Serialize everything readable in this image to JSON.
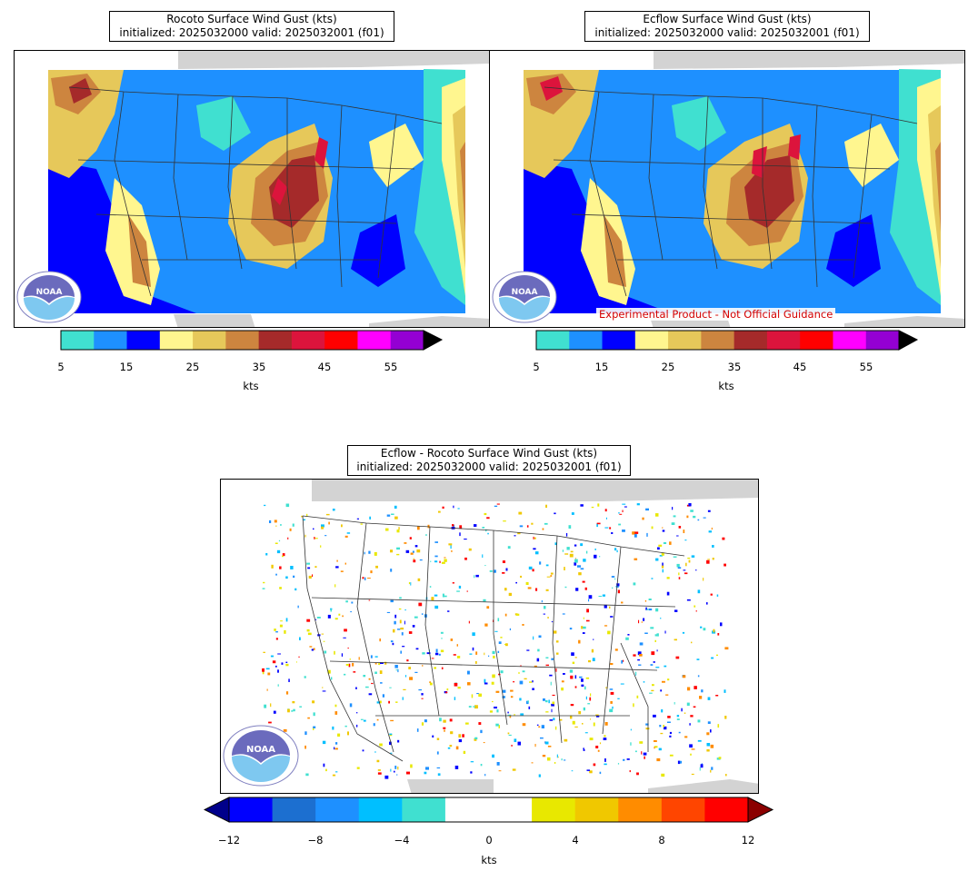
{
  "panels": {
    "rocoto": {
      "title_line1": "Rocoto Surface Wind Gust (kts)",
      "title_line2": "initialized: 2025032000 valid: 2025032001 (f01)"
    },
    "ecflow": {
      "title_line1": "Ecflow Surface Wind Gust (kts)",
      "title_line2": "initialized: 2025032000 valid: 2025032001 (f01)",
      "disclaimer": "Experimental Product - Not Official Guidance"
    },
    "diff": {
      "title_line1": "Ecflow - Rocoto Surface Wind Gust (kts)",
      "title_line2": "initialized: 2025032000 valid: 2025032001 (f01)"
    }
  },
  "logo": {
    "text": "NOAA",
    "icon": "noaa-logo"
  },
  "colorbar_gust": {
    "unit": "kts",
    "ticks": [
      "5",
      "15",
      "25",
      "35",
      "45",
      "55"
    ],
    "colors": [
      "#40e0d0",
      "#1e90ff",
      "#0000ff",
      "#fff68f",
      "#e6c85a",
      "#cd853f",
      "#a52a2a",
      "#dc143c",
      "#ff0000",
      "#ff00ff",
      "#9400d3"
    ],
    "extend": "max",
    "extend_color": "#000000"
  },
  "colorbar_diff": {
    "unit": "kts",
    "ticks": [
      "−12",
      "−8",
      "−4",
      "0",
      "4",
      "8",
      "12"
    ],
    "colors": [
      "#0000ff",
      "#1c6fd0",
      "#1e90ff",
      "#00bfff",
      "#40e0d0",
      "#ffffff",
      "#ffffff",
      "#e8e800",
      "#f0c800",
      "#ff8c00",
      "#ff4500",
      "#ff0000"
    ],
    "extend_low_color": "#00008b",
    "extend_high_color": "#8b0000"
  }
}
